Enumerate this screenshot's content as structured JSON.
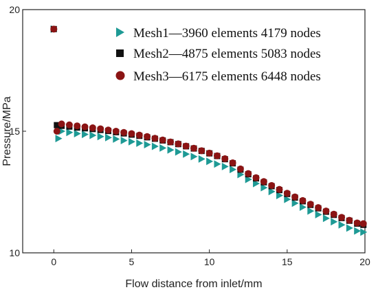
{
  "chart_data": {
    "type": "scatter",
    "title": "",
    "xlabel": "Flow distance from inlet/mm",
    "ylabel": "Pressure/MPa",
    "xlim": [
      -2,
      20
    ],
    "ylim": [
      10,
      20
    ],
    "xticks": [
      0,
      5,
      10,
      15,
      20
    ],
    "yticks": [
      10,
      15,
      20
    ],
    "grid": false,
    "legend_position": "top-right",
    "series": [
      {
        "name": "Mesh1—3960 elements 4179 nodes",
        "marker": "triangle-right",
        "color": "#1e9a95",
        "points": [
          [
            0,
            19.2
          ],
          [
            0.3,
            14.7
          ],
          [
            0.5,
            15.0
          ],
          [
            1,
            14.95
          ],
          [
            1.5,
            14.9
          ],
          [
            2,
            14.87
          ],
          [
            2.5,
            14.83
          ],
          [
            3,
            14.78
          ],
          [
            3.5,
            14.74
          ],
          [
            4,
            14.68
          ],
          [
            4.5,
            14.62
          ],
          [
            5,
            14.57
          ],
          [
            5.5,
            14.51
          ],
          [
            6,
            14.45
          ],
          [
            6.5,
            14.38
          ],
          [
            7,
            14.31
          ],
          [
            7.5,
            14.23
          ],
          [
            8,
            14.15
          ],
          [
            8.5,
            14.06
          ],
          [
            9,
            13.96
          ],
          [
            9.5,
            13.86
          ],
          [
            10,
            13.76
          ],
          [
            10.5,
            13.65
          ],
          [
            11,
            13.55
          ],
          [
            11.5,
            13.43
          ],
          [
            12,
            13.22
          ],
          [
            12.5,
            13.02
          ],
          [
            13,
            12.85
          ],
          [
            13.5,
            12.68
          ],
          [
            14,
            12.52
          ],
          [
            14.5,
            12.36
          ],
          [
            15,
            12.2
          ],
          [
            15.5,
            12.04
          ],
          [
            16,
            11.88
          ],
          [
            16.5,
            11.72
          ],
          [
            17,
            11.57
          ],
          [
            17.5,
            11.42
          ],
          [
            18,
            11.28
          ],
          [
            18.5,
            11.15
          ],
          [
            19,
            11.02
          ],
          [
            19.5,
            10.9
          ],
          [
            19.9,
            10.85
          ]
        ]
      },
      {
        "name": "Mesh2—4875 elements 5083 nodes",
        "marker": "square",
        "color": "#111111",
        "points": [
          [
            0,
            19.2
          ],
          [
            0.2,
            15.25
          ],
          [
            0.5,
            15.22
          ],
          [
            1,
            15.19
          ],
          [
            1.5,
            15.15
          ],
          [
            2,
            15.12
          ],
          [
            2.5,
            15.09
          ],
          [
            3,
            15.05
          ],
          [
            3.5,
            15.01
          ],
          [
            4,
            14.96
          ],
          [
            4.5,
            14.91
          ],
          [
            5,
            14.86
          ],
          [
            5.5,
            14.81
          ],
          [
            6,
            14.75
          ],
          [
            6.5,
            14.69
          ],
          [
            7,
            14.62
          ],
          [
            7.5,
            14.55
          ],
          [
            8,
            14.47
          ],
          [
            8.5,
            14.38
          ],
          [
            9,
            14.29
          ],
          [
            9.5,
            14.19
          ],
          [
            10,
            14.09
          ],
          [
            10.5,
            13.98
          ],
          [
            11,
            13.85
          ],
          [
            11.5,
            13.68
          ],
          [
            12,
            13.42
          ],
          [
            12.5,
            13.23
          ],
          [
            13,
            13.06
          ],
          [
            13.5,
            12.9
          ],
          [
            14,
            12.74
          ],
          [
            14.5,
            12.58
          ],
          [
            15,
            12.42
          ],
          [
            15.5,
            12.27
          ],
          [
            16,
            12.12
          ],
          [
            16.5,
            11.97
          ],
          [
            17,
            11.83
          ],
          [
            17.5,
            11.69
          ],
          [
            18,
            11.56
          ],
          [
            18.5,
            11.43
          ],
          [
            19,
            11.32
          ],
          [
            19.5,
            11.2
          ],
          [
            19.9,
            11.15
          ]
        ]
      },
      {
        "name": "Mesh3—6175 elements 6448 nodes",
        "marker": "circle",
        "color": "#8b1414",
        "points": [
          [
            0,
            19.2
          ],
          [
            0.2,
            15.0
          ],
          [
            0.5,
            15.3
          ],
          [
            1,
            15.26
          ],
          [
            1.5,
            15.22
          ],
          [
            2,
            15.18
          ],
          [
            2.5,
            15.14
          ],
          [
            3,
            15.1
          ],
          [
            3.5,
            15.05
          ],
          [
            4,
            15.0
          ],
          [
            4.5,
            14.95
          ],
          [
            5,
            14.9
          ],
          [
            5.5,
            14.84
          ],
          [
            6,
            14.78
          ],
          [
            6.5,
            14.71
          ],
          [
            7,
            14.64
          ],
          [
            7.5,
            14.56
          ],
          [
            8,
            14.48
          ],
          [
            8.5,
            14.39
          ],
          [
            9,
            14.3
          ],
          [
            9.5,
            14.2
          ],
          [
            10,
            14.1
          ],
          [
            10.5,
            13.99
          ],
          [
            11,
            13.87
          ],
          [
            11.5,
            13.7
          ],
          [
            12,
            13.45
          ],
          [
            12.5,
            13.26
          ],
          [
            13,
            13.09
          ],
          [
            13.5,
            12.93
          ],
          [
            14,
            12.77
          ],
          [
            14.5,
            12.61
          ],
          [
            15,
            12.45
          ],
          [
            15.5,
            12.3
          ],
          [
            16,
            12.15
          ],
          [
            16.5,
            12.0
          ],
          [
            17,
            11.86
          ],
          [
            17.5,
            11.72
          ],
          [
            18,
            11.59
          ],
          [
            18.5,
            11.46
          ],
          [
            19,
            11.34
          ],
          [
            19.5,
            11.23
          ],
          [
            19.9,
            11.2
          ]
        ]
      }
    ]
  }
}
